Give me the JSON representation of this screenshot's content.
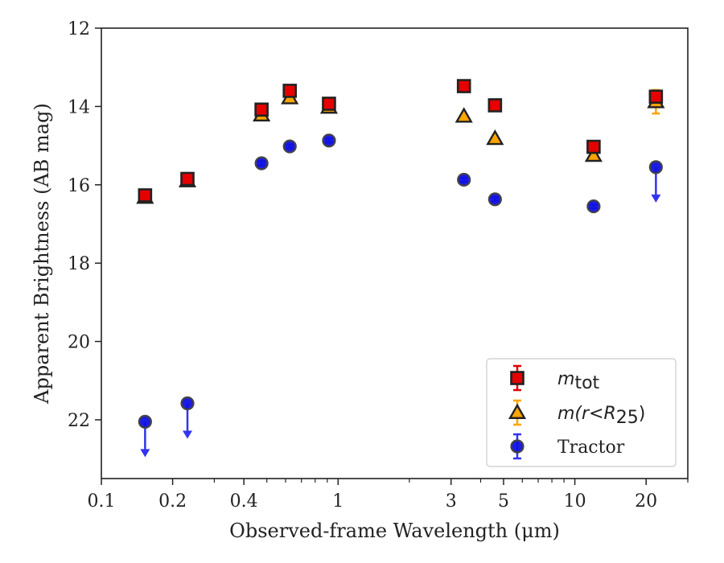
{
  "chart_data": {
    "type": "scatter",
    "title": "",
    "xlabel": "Observed-frame Wavelength (μm)",
    "ylabel": "Apparent Brightness (AB mag)",
    "xscale": "log",
    "xlim": [
      0.1,
      30
    ],
    "ylim": [
      23.5,
      12
    ],
    "y_inverted": true,
    "x_ticks": [
      {
        "value": 0.1,
        "label": "0.1"
      },
      {
        "value": 0.2,
        "label": "0.2"
      },
      {
        "value": 0.4,
        "label": "0.4"
      },
      {
        "value": 1,
        "label": "1"
      },
      {
        "value": 3,
        "label": "3"
      },
      {
        "value": 5,
        "label": "5"
      },
      {
        "value": 10,
        "label": "10"
      },
      {
        "value": 20,
        "label": "20"
      }
    ],
    "y_ticks": [
      12,
      14,
      16,
      18,
      20,
      22
    ],
    "grid": false,
    "legend": {
      "placement": "bottom-right",
      "entries": [
        "m_tot",
        "m(r < R_25)",
        "Tractor"
      ]
    },
    "series": [
      {
        "name": "m_tot",
        "marker": "square",
        "color": "#e60000",
        "edge": "#222222",
        "points": [
          {
            "x": 0.153,
            "y": 16.27,
            "err": 0.05
          },
          {
            "x": 0.231,
            "y": 15.85,
            "err": 0.05
          },
          {
            "x": 0.475,
            "y": 14.08,
            "err": 0.05
          },
          {
            "x": 0.625,
            "y": 13.6,
            "err": 0.05
          },
          {
            "x": 0.915,
            "y": 13.93,
            "err": 0.05
          },
          {
            "x": 3.4,
            "y": 13.48,
            "err": 0.03
          },
          {
            "x": 4.6,
            "y": 13.97,
            "err": 0.03
          },
          {
            "x": 12.0,
            "y": 15.03,
            "err": 0.05
          },
          {
            "x": 22.0,
            "y": 13.75,
            "err": 0.1
          }
        ]
      },
      {
        "name": "m(r < R_25)",
        "marker": "triangle",
        "color": "#ffa500",
        "edge": "#222222",
        "points": [
          {
            "x": 0.153,
            "y": 16.32,
            "err": 0.05
          },
          {
            "x": 0.231,
            "y": 15.9,
            "err": 0.05
          },
          {
            "x": 0.475,
            "y": 14.22,
            "err": 0.05
          },
          {
            "x": 0.625,
            "y": 13.78,
            "err": 0.05
          },
          {
            "x": 0.915,
            "y": 14.02,
            "err": 0.05
          },
          {
            "x": 3.4,
            "y": 14.25,
            "err": 0.03
          },
          {
            "x": 4.6,
            "y": 14.82,
            "err": 0.03
          },
          {
            "x": 12.0,
            "y": 15.25,
            "err": 0.08
          },
          {
            "x": 22.0,
            "y": 13.88,
            "err": 0.3
          }
        ]
      },
      {
        "name": "Tractor",
        "marker": "circle",
        "color": "#1010e0",
        "edge": "#444444",
        "points": [
          {
            "x": 0.153,
            "y": 22.05,
            "err": 0,
            "upper_limit": true
          },
          {
            "x": 0.231,
            "y": 21.58,
            "err": 0,
            "upper_limit": true
          },
          {
            "x": 0.475,
            "y": 15.45,
            "err": 0.05
          },
          {
            "x": 0.625,
            "y": 15.02,
            "err": 0.05
          },
          {
            "x": 0.915,
            "y": 14.87,
            "err": 0.05
          },
          {
            "x": 3.4,
            "y": 15.87,
            "err": 0.05
          },
          {
            "x": 4.6,
            "y": 16.37,
            "err": 0.05
          },
          {
            "x": 12.0,
            "y": 16.55,
            "err": 0.05
          },
          {
            "x": 22.0,
            "y": 15.55,
            "err": 0,
            "upper_limit": true
          }
        ]
      }
    ]
  }
}
